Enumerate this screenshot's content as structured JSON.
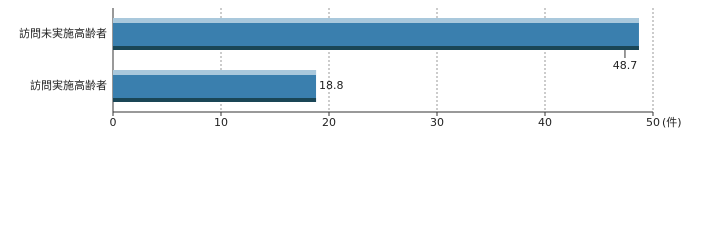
{
  "chart_data": {
    "type": "hbar",
    "categories": [
      "訪問未実施高齢者",
      "訪問実施高齢者"
    ],
    "values": [
      48.7,
      18.8
    ],
    "color": "#3a7fae",
    "xlim": [
      0,
      50
    ],
    "xticks": [
      0,
      10,
      20,
      30,
      40,
      50
    ],
    "xlabel": "(件)",
    "grid": true
  }
}
